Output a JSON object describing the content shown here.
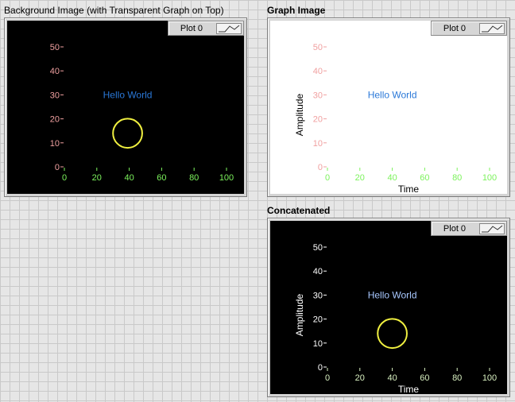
{
  "panels": [
    {
      "label": "Background Image (with Transparent Graph on Top)",
      "legend_label": "Plot 0",
      "xlabel": "",
      "ylabel": "",
      "annotation": "Hello World"
    },
    {
      "label": "Graph Image",
      "legend_label": "Plot 0",
      "xlabel": "Time",
      "ylabel": "Amplitude",
      "annotation": "Hello World"
    },
    {
      "label": "Concatenated",
      "legend_label": "Plot 0",
      "xlabel": "Time",
      "ylabel": "Amplitude",
      "annotation": "Hello World"
    }
  ],
  "colors": {
    "x_tick": "#7cf25c",
    "y_tick_light": "#f0a0a0",
    "y_tick_concat": "#ffffff",
    "x_tick_concat": "#d8f0c0",
    "annotation": "#2a78d8",
    "circle": "#f0f040",
    "plot_bg_dark": "#000000",
    "plot_bg_light": "#ffffff"
  },
  "chart_data": [
    {
      "type": "scatter",
      "title": "",
      "xlabel": "",
      "ylabel": "",
      "xlim": [
        0,
        100
      ],
      "ylim": [
        0,
        50
      ],
      "x_ticks": [
        0,
        20,
        40,
        60,
        80,
        100
      ],
      "y_ticks": [
        0,
        10,
        20,
        30,
        40,
        50
      ],
      "circle": {
        "cx": 39,
        "cy": 14,
        "r": 9
      },
      "annotation": {
        "text": "Hello World",
        "x": 39,
        "y": 30
      }
    },
    {
      "type": "scatter",
      "title": "",
      "xlabel": "Time",
      "ylabel": "Amplitude",
      "xlim": [
        0,
        100
      ],
      "ylim": [
        0,
        50
      ],
      "x_ticks": [
        0,
        20,
        40,
        60,
        80,
        100
      ],
      "y_ticks": [
        0,
        10,
        20,
        30,
        40,
        50
      ],
      "annotation": {
        "text": "Hello World",
        "x": 40,
        "y": 30
      }
    },
    {
      "type": "scatter",
      "title": "",
      "xlabel": "Time",
      "ylabel": "Amplitude",
      "xlim": [
        0,
        100
      ],
      "ylim": [
        0,
        50
      ],
      "x_ticks": [
        0,
        20,
        40,
        60,
        80,
        100
      ],
      "y_ticks": [
        0,
        10,
        20,
        30,
        40,
        50
      ],
      "circle": {
        "cx": 40,
        "cy": 14,
        "r": 9
      },
      "annotation": {
        "text": "Hello World",
        "x": 40,
        "y": 30
      }
    }
  ]
}
